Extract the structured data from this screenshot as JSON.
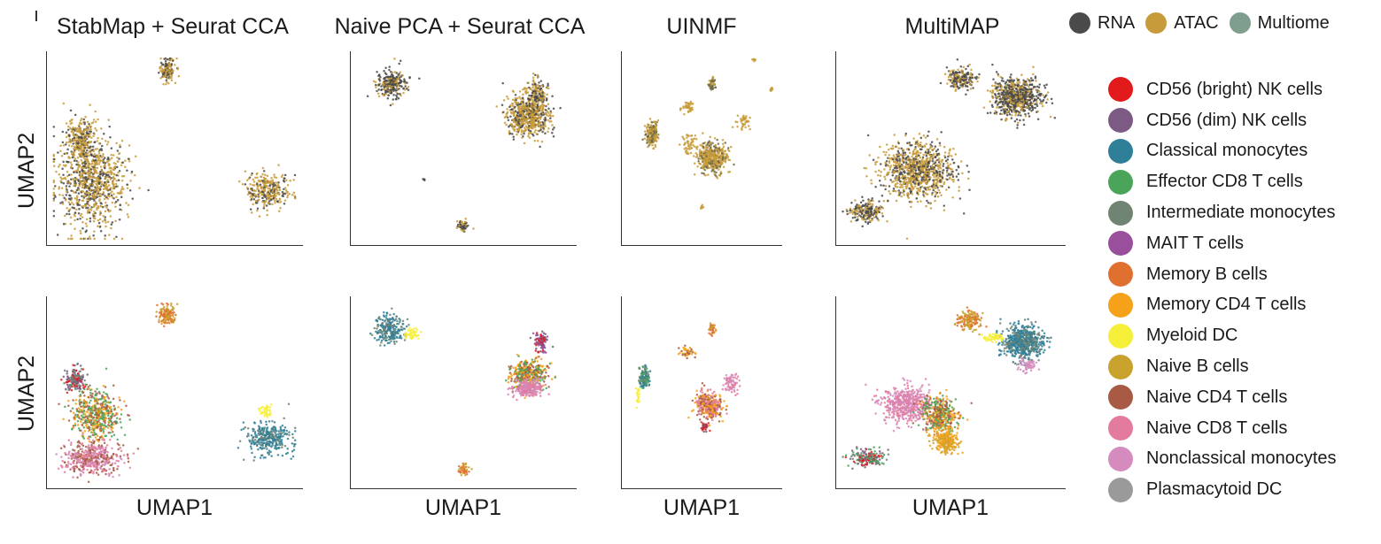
{
  "column_titles": [
    "StabMap + Seurat CCA",
    "Naive PCA + Seurat CCA",
    "UINMF",
    "MultiMAP"
  ],
  "axis": {
    "x_label": "UMAP1",
    "y_label": "UMAP2"
  },
  "modality_legend": [
    {
      "name": "RNA",
      "color": "#4a4a4a"
    },
    {
      "name": "ATAC",
      "color": "#c89b3a"
    },
    {
      "name": "Multiome",
      "color": "#7f9e8e"
    }
  ],
  "cell_type_legend": [
    {
      "name": "CD56 (bright) NK cells",
      "color": "#e31a1c"
    },
    {
      "name": "CD56 (dim) NK cells",
      "color": "#7b5a83"
    },
    {
      "name": "Classical monocytes",
      "color": "#2f7f99"
    },
    {
      "name": "Effector CD8 T cells",
      "color": "#4aa55a"
    },
    {
      "name": "Intermediate monocytes",
      "color": "#6f8472"
    },
    {
      "name": "MAIT T cells",
      "color": "#9a4f9c"
    },
    {
      "name": "Memory B cells",
      "color": "#e07030"
    },
    {
      "name": "Memory CD4 T cells",
      "color": "#f6a11a"
    },
    {
      "name": "Myeloid DC",
      "color": "#f6ef3a"
    },
    {
      "name": "Naive B cells",
      "color": "#c9a22d"
    },
    {
      "name": "Naive CD4 T cells",
      "color": "#a85a45"
    },
    {
      "name": "Naive CD8 T cells",
      "color": "#e37b9e"
    },
    {
      "name": "Nonclassical monocytes",
      "color": "#d58bbd"
    },
    {
      "name": "Plasmacytoid DC",
      "color": "#9a9a9a"
    }
  ],
  "chart_data": [
    {
      "type": "scatter",
      "method": "StabMap + Seurat CCA",
      "coloring": "modality",
      "xlabel": "",
      "ylabel": "UMAP2",
      "clusters": [
        {
          "center": [
            0.47,
            0.93
          ],
          "spread": [
            0.03,
            0.06
          ],
          "n": 140,
          "colors": [
            "#4a4a4a",
            "#c89b3a",
            "#c89b3a"
          ]
        },
        {
          "center": [
            0.16,
            0.32
          ],
          "spread": [
            0.13,
            0.22
          ],
          "n": 900,
          "colors": [
            "#4a4a4a",
            "#c89b3a",
            "#c89b3a"
          ]
        },
        {
          "center": [
            0.12,
            0.55
          ],
          "spread": [
            0.05,
            0.1
          ],
          "n": 250,
          "colors": [
            "#4a4a4a",
            "#c89b3a",
            "#c89b3a"
          ]
        },
        {
          "center": [
            0.88,
            0.27
          ],
          "spread": [
            0.08,
            0.09
          ],
          "n": 300,
          "colors": [
            "#4a4a4a",
            "#c89b3a",
            "#c89b3a"
          ]
        }
      ]
    },
    {
      "type": "scatter",
      "method": "Naive PCA + Seurat CCA",
      "coloring": "modality",
      "xlabel": "",
      "ylabel": "",
      "clusters": [
        {
          "center": [
            0.17,
            0.85
          ],
          "spread": [
            0.06,
            0.07
          ],
          "n": 260,
          "colors": [
            "#4a4a4a",
            "#4a4a4a",
            "#c89b3a"
          ]
        },
        {
          "center": [
            0.8,
            0.68
          ],
          "spread": [
            0.09,
            0.1
          ],
          "n": 600,
          "colors": [
            "#4a4a4a",
            "#c89b3a",
            "#c89b3a"
          ]
        },
        {
          "center": [
            0.84,
            0.8
          ],
          "spread": [
            0.04,
            0.07
          ],
          "n": 150,
          "colors": [
            "#4a4a4a",
            "#c89b3a"
          ]
        },
        {
          "center": [
            0.5,
            0.08
          ],
          "spread": [
            0.02,
            0.03
          ],
          "n": 60,
          "colors": [
            "#4a4a4a",
            "#c89b3a"
          ]
        },
        {
          "center": [
            0.32,
            0.33
          ],
          "spread": [
            0.005,
            0.005
          ],
          "n": 5,
          "colors": [
            "#4a4a4a"
          ]
        }
      ]
    },
    {
      "type": "scatter",
      "method": "UINMF",
      "coloring": "modality",
      "xlabel": "",
      "ylabel": "",
      "clusters": [
        {
          "center": [
            0.17,
            0.58
          ],
          "spread": [
            0.04,
            0.06
          ],
          "n": 180,
          "colors": [
            "#c89b3a",
            "#c89b3a",
            "#6e6a45"
          ]
        },
        {
          "center": [
            0.57,
            0.45
          ],
          "spread": [
            0.09,
            0.08
          ],
          "n": 400,
          "colors": [
            "#c89b3a",
            "#c89b3a",
            "#6e6a45"
          ]
        },
        {
          "center": [
            0.57,
            0.85
          ],
          "spread": [
            0.02,
            0.03
          ],
          "n": 40,
          "colors": [
            "#c89b3a",
            "#6e6a45"
          ]
        },
        {
          "center": [
            0.4,
            0.72
          ],
          "spread": [
            0.04,
            0.03
          ],
          "n": 40,
          "colors": [
            "#c89b3a"
          ]
        },
        {
          "center": [
            0.42,
            0.53
          ],
          "spread": [
            0.05,
            0.05
          ],
          "n": 50,
          "colors": [
            "#c89b3a"
          ]
        },
        {
          "center": [
            0.78,
            0.65
          ],
          "spread": [
            0.04,
            0.04
          ],
          "n": 40,
          "colors": [
            "#c89b3a"
          ]
        },
        {
          "center": [
            0.85,
            0.98
          ],
          "spread": [
            0.01,
            0.01
          ],
          "n": 8,
          "colors": [
            "#c89b3a"
          ]
        },
        {
          "center": [
            0.96,
            0.82
          ],
          "spread": [
            0.01,
            0.01
          ],
          "n": 8,
          "colors": [
            "#c89b3a"
          ]
        },
        {
          "center": [
            0.5,
            0.18
          ],
          "spread": [
            0.01,
            0.01
          ],
          "n": 8,
          "colors": [
            "#c89b3a"
          ]
        }
      ]
    },
    {
      "type": "scatter",
      "method": "MultiMAP",
      "coloring": "modality",
      "xlabel": "",
      "ylabel": "",
      "clusters": [
        {
          "center": [
            0.8,
            0.78
          ],
          "spread": [
            0.1,
            0.09
          ],
          "n": 700,
          "colors": [
            "#4a4a4a",
            "#4a4a4a",
            "#c89b3a"
          ]
        },
        {
          "center": [
            0.55,
            0.88
          ],
          "spread": [
            0.06,
            0.05
          ],
          "n": 200,
          "colors": [
            "#4a4a4a",
            "#c89b3a"
          ]
        },
        {
          "center": [
            0.35,
            0.38
          ],
          "spread": [
            0.15,
            0.14
          ],
          "n": 900,
          "colors": [
            "#4a4a4a",
            "#c89b3a",
            "#c89b3a"
          ]
        },
        {
          "center": [
            0.12,
            0.16
          ],
          "spread": [
            0.07,
            0.05
          ],
          "n": 200,
          "colors": [
            "#4a4a4a",
            "#c89b3a"
          ]
        }
      ]
    },
    {
      "type": "scatter",
      "method": "StabMap + Seurat CCA",
      "coloring": "cell type",
      "xlabel": "UMAP1",
      "ylabel": "UMAP2",
      "clusters": [
        {
          "center": [
            0.47,
            0.93
          ],
          "spread": [
            0.03,
            0.05
          ],
          "n": 140,
          "colors": [
            "#c9a22d",
            "#e07030"
          ]
        },
        {
          "center": [
            0.1,
            0.57
          ],
          "spread": [
            0.04,
            0.06
          ],
          "n": 160,
          "colors": [
            "#e31a1c",
            "#7b5a83",
            "#6f8472"
          ]
        },
        {
          "center": [
            0.18,
            0.38
          ],
          "spread": [
            0.09,
            0.12
          ],
          "n": 500,
          "colors": [
            "#f6a11a",
            "#a85a45",
            "#4aa55a"
          ]
        },
        {
          "center": [
            0.17,
            0.14
          ],
          "spread": [
            0.1,
            0.08
          ],
          "n": 450,
          "colors": [
            "#e37b9e",
            "#a85a45",
            "#d58bbd"
          ]
        },
        {
          "center": [
            0.88,
            0.25
          ],
          "spread": [
            0.08,
            0.08
          ],
          "n": 320,
          "colors": [
            "#2f7f99",
            "#6f8472",
            "#2f7f99"
          ]
        },
        {
          "center": [
            0.87,
            0.4
          ],
          "spread": [
            0.02,
            0.03
          ],
          "n": 40,
          "colors": [
            "#f6ef3a"
          ]
        }
      ]
    },
    {
      "type": "scatter",
      "method": "Naive PCA + Seurat CCA",
      "coloring": "cell type",
      "xlabel": "UMAP1",
      "ylabel": "",
      "clusters": [
        {
          "center": [
            0.16,
            0.85
          ],
          "spread": [
            0.06,
            0.07
          ],
          "n": 240,
          "colors": [
            "#2f7f99",
            "#6f8472",
            "#2f7f99"
          ]
        },
        {
          "center": [
            0.26,
            0.82
          ],
          "spread": [
            0.03,
            0.03
          ],
          "n": 50,
          "colors": [
            "#f6ef3a"
          ]
        },
        {
          "center": [
            0.8,
            0.6
          ],
          "spread": [
            0.08,
            0.07
          ],
          "n": 400,
          "colors": [
            "#f6a11a",
            "#a85a45",
            "#4aa55a"
          ]
        },
        {
          "center": [
            0.8,
            0.52
          ],
          "spread": [
            0.06,
            0.04
          ],
          "n": 250,
          "colors": [
            "#e37b9e",
            "#d58bbd"
          ]
        },
        {
          "center": [
            0.86,
            0.78
          ],
          "spread": [
            0.03,
            0.05
          ],
          "n": 100,
          "colors": [
            "#e31a1c",
            "#7b5a83",
            "#9a4f9c"
          ]
        },
        {
          "center": [
            0.5,
            0.08
          ],
          "spread": [
            0.02,
            0.03
          ],
          "n": 50,
          "colors": [
            "#e07030",
            "#c9a22d"
          ]
        }
      ]
    },
    {
      "type": "scatter",
      "method": "UINMF",
      "coloring": "cell type",
      "xlabel": "UMAP1",
      "ylabel": "",
      "clusters": [
        {
          "center": [
            0.12,
            0.58
          ],
          "spread": [
            0.03,
            0.05
          ],
          "n": 140,
          "colors": [
            "#2f7f99",
            "#4aa55a",
            "#6f8472"
          ]
        },
        {
          "center": [
            0.55,
            0.43
          ],
          "spread": [
            0.08,
            0.07
          ],
          "n": 350,
          "colors": [
            "#a85a45",
            "#f6a11a",
            "#e37b9e"
          ]
        },
        {
          "center": [
            0.7,
            0.55
          ],
          "spread": [
            0.04,
            0.05
          ],
          "n": 80,
          "colors": [
            "#e37b9e",
            "#d58bbd"
          ]
        },
        {
          "center": [
            0.52,
            0.31
          ],
          "spread": [
            0.02,
            0.02
          ],
          "n": 40,
          "colors": [
            "#e31a1c",
            "#7b5a83"
          ]
        },
        {
          "center": [
            0.57,
            0.85
          ],
          "spread": [
            0.02,
            0.03
          ],
          "n": 40,
          "colors": [
            "#e07030",
            "#c9a22d"
          ]
        },
        {
          "center": [
            0.4,
            0.72
          ],
          "spread": [
            0.04,
            0.03
          ],
          "n": 40,
          "colors": [
            "#a85a45",
            "#f6a11a"
          ]
        },
        {
          "center": [
            0.08,
            0.48
          ],
          "spread": [
            0.01,
            0.04
          ],
          "n": 20,
          "colors": [
            "#f6ef3a"
          ]
        }
      ]
    },
    {
      "type": "scatter",
      "method": "MultiMAP",
      "coloring": "cell type",
      "xlabel": "UMAP1",
      "ylabel": "",
      "clusters": [
        {
          "center": [
            0.83,
            0.78
          ],
          "spread": [
            0.09,
            0.08
          ],
          "n": 600,
          "colors": [
            "#2f7f99",
            "#6f8472",
            "#2f7f99"
          ]
        },
        {
          "center": [
            0.58,
            0.9
          ],
          "spread": [
            0.05,
            0.05
          ],
          "n": 150,
          "colors": [
            "#e07030",
            "#c9a22d"
          ]
        },
        {
          "center": [
            0.7,
            0.8
          ],
          "spread": [
            0.04,
            0.02
          ],
          "n": 60,
          "colors": [
            "#f6ef3a"
          ]
        },
        {
          "center": [
            0.85,
            0.65
          ],
          "spread": [
            0.04,
            0.03
          ],
          "n": 60,
          "colors": [
            "#d58bbd"
          ]
        },
        {
          "center": [
            0.3,
            0.44
          ],
          "spread": [
            0.1,
            0.09
          ],
          "n": 500,
          "colors": [
            "#e37b9e",
            "#d58bbd"
          ]
        },
        {
          "center": [
            0.45,
            0.38
          ],
          "spread": [
            0.07,
            0.09
          ],
          "n": 400,
          "colors": [
            "#a85a45",
            "#f6a11a",
            "#4aa55a"
          ]
        },
        {
          "center": [
            0.48,
            0.24
          ],
          "spread": [
            0.05,
            0.06
          ],
          "n": 250,
          "colors": [
            "#f6a11a",
            "#c9a22d"
          ]
        },
        {
          "center": [
            0.12,
            0.14
          ],
          "spread": [
            0.07,
            0.04
          ],
          "n": 180,
          "colors": [
            "#7b5a83",
            "#e31a1c",
            "#4aa55a",
            "#6f8472"
          ]
        }
      ]
    }
  ]
}
